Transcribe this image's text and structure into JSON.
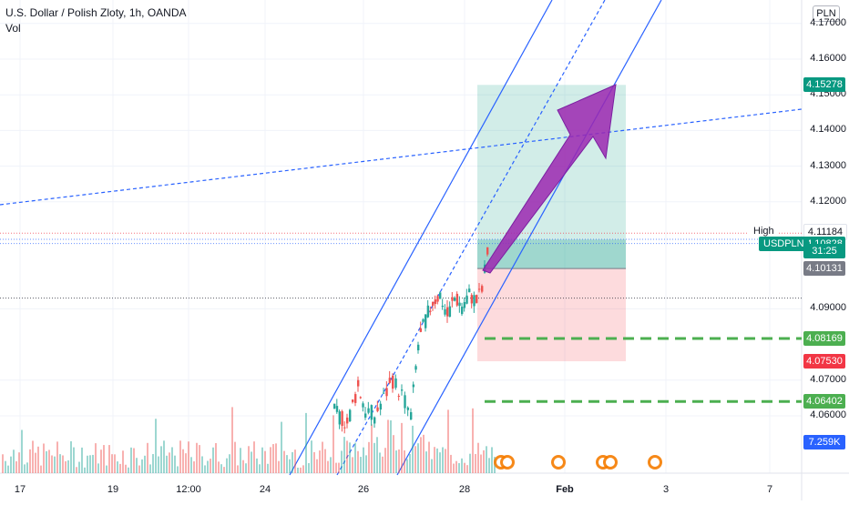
{
  "header": {
    "title": "U.S. Dollar / Polish Zloty, 1h, OANDA",
    "volume_label": "Vol",
    "currency": "PLN"
  },
  "chart_data": {
    "type": "candlestick",
    "title": "U.S. Dollar / Polish Zloty, 1h, OANDA",
    "symbol": "USDPLN",
    "y_ticks": [
      4.17,
      4.16,
      4.15,
      4.14,
      4.13,
      4.12,
      4.09,
      4.07,
      4.06
    ],
    "y_tick_labels": [
      "4.17000",
      "4.16000",
      "4.15000",
      "4.14000",
      "4.13000",
      "4.12000",
      "4.09000",
      "4.07000",
      "4.06000"
    ],
    "ylim": [
      4.05,
      4.175
    ],
    "x_labels": [
      "17",
      "19",
      "12:00",
      "24",
      "26",
      "28",
      "Feb",
      "3",
      "7"
    ],
    "price_tags": [
      {
        "label": "4.15278",
        "value": 4.15278,
        "color": "#089981"
      },
      {
        "label": "4.11184",
        "value": 4.11184,
        "color": "#ffffff"
      },
      {
        "label": "4.10828",
        "value": 4.10828,
        "color": "#089981"
      },
      {
        "label": "31:25",
        "value": 4.1062,
        "color": "#089981"
      },
      {
        "label": "4.10131",
        "value": 4.10131,
        "color": "#787b86"
      },
      {
        "label": "4.08169",
        "value": 4.08169,
        "color": "#4caf50"
      },
      {
        "label": "4.07530",
        "value": 4.0753,
        "color": "#f23645"
      },
      {
        "label": "4.06402",
        "value": 4.06402,
        "color": "#4caf50"
      },
      {
        "label": "7.259K",
        "value": 4.0525,
        "color": "#2962ff"
      }
    ],
    "side_labels": {
      "high": "High",
      "symbol": "USDPLN"
    },
    "position": {
      "entry": 4.10131,
      "target": 4.15278,
      "stop": 4.0753
    },
    "levels": [
      4.08169,
      4.06402
    ],
    "grid": true
  }
}
